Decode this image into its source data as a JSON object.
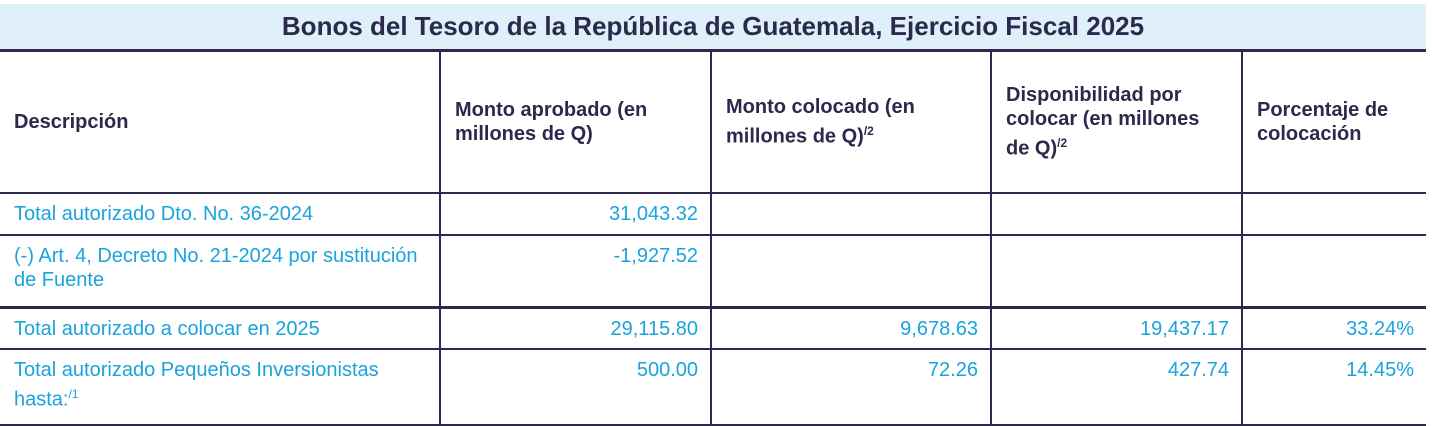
{
  "title": "Bonos del Tesoro de la República de Guatemala, Ejercicio Fiscal 2025",
  "colors": {
    "header_text": "#2b2a4c",
    "data_text": "#1aa3dc",
    "title_bg": "#dff0fa"
  },
  "headers": [
    {
      "label": "Descripción",
      "note": ""
    },
    {
      "label": "Monto aprobado (en millones de Q)",
      "note": ""
    },
    {
      "label": "Monto colocado (en millones de Q)",
      "note": "/2"
    },
    {
      "label": "Disponibilidad por colocar (en millones de Q)",
      "note": "/2"
    },
    {
      "label": "Porcentaje de colocación",
      "note": ""
    }
  ],
  "rows": [
    {
      "descripcion": "Total autorizado Dto. No. 36-2024",
      "note": "",
      "aprobado": "31,043.32",
      "colocado": "",
      "disponibilidad": "",
      "porcentaje": ""
    },
    {
      "descripcion": "(-) Art. 4, Decreto No. 21-2024 por sustitución de Fuente",
      "note": "",
      "aprobado": "-1,927.52",
      "colocado": "",
      "disponibilidad": "",
      "porcentaje": ""
    },
    {
      "descripcion": "Total autorizado a colocar en 2025",
      "note": "",
      "aprobado": "29,115.80",
      "colocado": "9,678.63",
      "disponibilidad": "19,437.17",
      "porcentaje": "33.24%"
    },
    {
      "descripcion": "Total autorizado Pequeños Inversionistas hasta:",
      "note": "/1",
      "aprobado": "500.00",
      "colocado": "72.26",
      "disponibilidad": "427.74",
      "porcentaje": "14.45%"
    }
  ]
}
